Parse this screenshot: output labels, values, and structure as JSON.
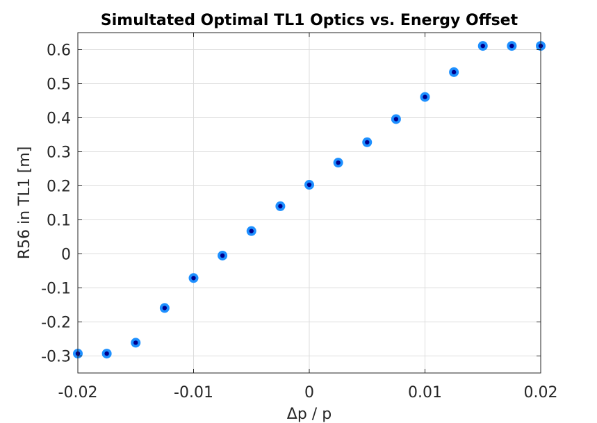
{
  "chart_data": {
    "type": "scatter",
    "title": "Simultated Optimal TL1 Optics vs. Energy Offset",
    "xlabel": "Δp / p",
    "ylabel": "R56 in TL1 [m]",
    "xlim": [
      -0.02,
      0.02
    ],
    "ylim": [
      -0.35,
      0.65
    ],
    "xticks": [
      -0.02,
      -0.01,
      0,
      0.01,
      0.02
    ],
    "xtick_labels": [
      "-0.02",
      "-0.01",
      "0",
      "0.01",
      "0.02"
    ],
    "yticks": [
      -0.3,
      -0.2,
      -0.1,
      0,
      0.1,
      0.2,
      0.3,
      0.4,
      0.5,
      0.6
    ],
    "ytick_labels": [
      "-0.3",
      "-0.2",
      "-0.1",
      "0",
      "0.1",
      "0.2",
      "0.3",
      "0.4",
      "0.5",
      "0.6"
    ],
    "grid": true,
    "marker_outer_color": "#1e90ff",
    "marker_inner_color": "#00008b",
    "series": [
      {
        "x": [
          -0.02,
          -0.0175,
          -0.015,
          -0.0125,
          -0.01,
          -0.0075,
          -0.005,
          -0.0025,
          0,
          0.0025,
          0.005,
          0.0075,
          0.01,
          0.0125,
          0.015,
          0.0175,
          0.02
        ],
        "y": [
          -0.293,
          -0.293,
          -0.261,
          -0.159,
          -0.071,
          -0.005,
          0.067,
          0.14,
          0.203,
          0.268,
          0.328,
          0.396,
          0.461,
          0.534,
          0.611,
          0.611,
          0.611
        ]
      }
    ]
  }
}
